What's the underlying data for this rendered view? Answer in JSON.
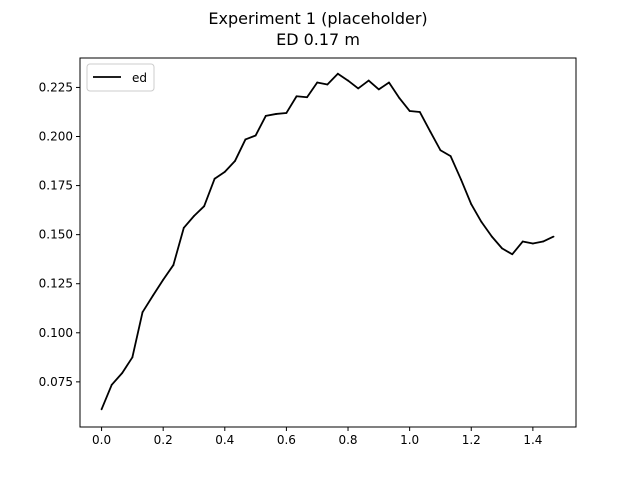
{
  "chart_data": {
    "type": "line",
    "title": "Experiment 1 (placeholder)",
    "subtitle": "ED 0.17 m",
    "xlabel": "",
    "ylabel": "",
    "xlim": [
      -0.07,
      1.54
    ],
    "ylim": [
      0.052,
      0.24
    ],
    "x_ticks": [
      0.0,
      0.2,
      0.4,
      0.6,
      0.8,
      1.0,
      1.2,
      1.4
    ],
    "x_tick_labels": [
      "0.0",
      "0.2",
      "0.4",
      "0.6",
      "0.8",
      "1.0",
      "1.2",
      "1.4"
    ],
    "y_ticks": [
      0.075,
      0.1,
      0.125,
      0.15,
      0.175,
      0.2,
      0.225
    ],
    "y_tick_labels": [
      "0.075",
      "0.100",
      "0.125",
      "0.150",
      "0.175",
      "0.200",
      "0.225"
    ],
    "grid": false,
    "legend_position": "top-left",
    "series": [
      {
        "name": "ed",
        "color": "#000000",
        "x": [
          0.0,
          0.033,
          0.067,
          0.1,
          0.133,
          0.167,
          0.2,
          0.233,
          0.267,
          0.3,
          0.333,
          0.367,
          0.4,
          0.433,
          0.467,
          0.5,
          0.533,
          0.567,
          0.6,
          0.633,
          0.667,
          0.7,
          0.733,
          0.767,
          0.8,
          0.833,
          0.867,
          0.9,
          0.933,
          0.967,
          1.0,
          1.033,
          1.067,
          1.1,
          1.133,
          1.167,
          1.2,
          1.233,
          1.267,
          1.3,
          1.333,
          1.367,
          1.4,
          1.433,
          1.467
        ],
        "y": [
          0.061,
          0.0735,
          0.0795,
          0.0875,
          0.1105,
          0.119,
          0.127,
          0.1345,
          0.1535,
          0.1595,
          0.1645,
          0.1785,
          0.182,
          0.1875,
          0.1985,
          0.2005,
          0.2105,
          0.2115,
          0.212,
          0.2205,
          0.22,
          0.2275,
          0.2265,
          0.232,
          0.2285,
          0.2245,
          0.2285,
          0.224,
          0.2275,
          0.2195,
          0.213,
          0.2125,
          0.2025,
          0.193,
          0.19,
          0.178,
          0.1655,
          0.1565,
          0.149,
          0.143,
          0.14,
          0.1465,
          0.1455,
          0.1465,
          0.149
        ]
      }
    ]
  }
}
